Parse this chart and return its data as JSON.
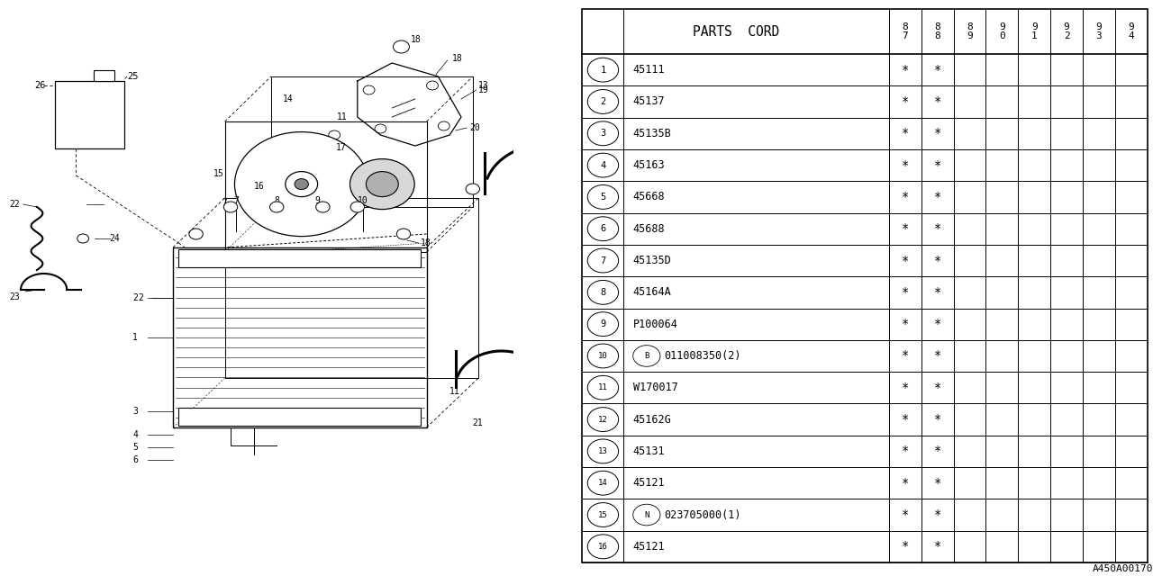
{
  "header_label": "PARTS CORD",
  "year_cols": [
    "8\n7",
    "8\n8",
    "8\n9",
    "9\n0",
    "9\n1",
    "9\n2",
    "9\n3",
    "9\n4"
  ],
  "rows": [
    {
      "num": "1",
      "code": "45111",
      "marks": [
        true,
        true,
        false,
        false,
        false,
        false,
        false,
        false
      ],
      "prefix": ""
    },
    {
      "num": "2",
      "code": "45137",
      "marks": [
        true,
        true,
        false,
        false,
        false,
        false,
        false,
        false
      ],
      "prefix": ""
    },
    {
      "num": "3",
      "code": "45135B",
      "marks": [
        true,
        true,
        false,
        false,
        false,
        false,
        false,
        false
      ],
      "prefix": ""
    },
    {
      "num": "4",
      "code": "45163",
      "marks": [
        true,
        true,
        false,
        false,
        false,
        false,
        false,
        false
      ],
      "prefix": ""
    },
    {
      "num": "5",
      "code": "45668",
      "marks": [
        true,
        true,
        false,
        false,
        false,
        false,
        false,
        false
      ],
      "prefix": ""
    },
    {
      "num": "6",
      "code": "45688",
      "marks": [
        true,
        true,
        false,
        false,
        false,
        false,
        false,
        false
      ],
      "prefix": ""
    },
    {
      "num": "7",
      "code": "45135D",
      "marks": [
        true,
        true,
        false,
        false,
        false,
        false,
        false,
        false
      ],
      "prefix": ""
    },
    {
      "num": "8",
      "code": "45164A",
      "marks": [
        true,
        true,
        false,
        false,
        false,
        false,
        false,
        false
      ],
      "prefix": ""
    },
    {
      "num": "9",
      "code": "P100064",
      "marks": [
        true,
        true,
        false,
        false,
        false,
        false,
        false,
        false
      ],
      "prefix": ""
    },
    {
      "num": "10",
      "code": "011008350(2)",
      "marks": [
        true,
        true,
        false,
        false,
        false,
        false,
        false,
        false
      ],
      "prefix": "B"
    },
    {
      "num": "11",
      "code": "W170017",
      "marks": [
        true,
        true,
        false,
        false,
        false,
        false,
        false,
        false
      ],
      "prefix": ""
    },
    {
      "num": "12",
      "code": "45162G",
      "marks": [
        true,
        true,
        false,
        false,
        false,
        false,
        false,
        false
      ],
      "prefix": ""
    },
    {
      "num": "13",
      "code": "45131",
      "marks": [
        true,
        true,
        false,
        false,
        false,
        false,
        false,
        false
      ],
      "prefix": ""
    },
    {
      "num": "14",
      "code": "45121",
      "marks": [
        true,
        true,
        false,
        false,
        false,
        false,
        false,
        false
      ],
      "prefix": ""
    },
    {
      "num": "15",
      "code": "023705000(1)",
      "marks": [
        true,
        true,
        false,
        false,
        false,
        false,
        false,
        false
      ],
      "prefix": "N"
    },
    {
      "num": "16",
      "code": "45121",
      "marks": [
        true,
        true,
        false,
        false,
        false,
        false,
        false,
        false
      ],
      "prefix": ""
    }
  ],
  "watermark": "A450A00170",
  "bg_color": "#ffffff"
}
